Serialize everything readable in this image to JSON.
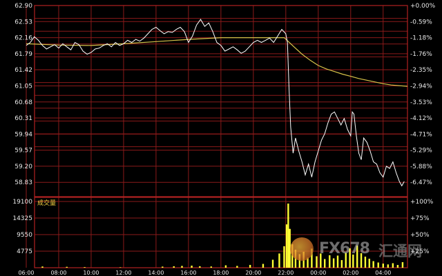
{
  "colors": {
    "background": "#000000",
    "grid": "#8b1a1a",
    "frame": "#b22222",
    "price_line": "#ffffff",
    "avg_line": "#d8c44a",
    "volume_bars": "#ffff33",
    "left_labels": "#e8e8e8",
    "right_labels": "#e8e8e8"
  },
  "volume_panel_label": "成交量",
  "watermark": {
    "brand": "FX678",
    "cn": "汇通网",
    "logo": "fx678-logo-icon"
  },
  "chart_data": [
    {
      "type": "line",
      "panel": "price",
      "y_left_ticks": [
        "62.90",
        "62.53",
        "62.16",
        "61.79",
        "61.42",
        "61.05",
        "60.68",
        "60.31",
        "59.94",
        "59.57",
        "59.20",
        "58.83"
      ],
      "y_right_ticks": [
        "+0.00%",
        "-0.59%",
        "-1.18%",
        "-1.76%",
        "-2.35%",
        "-2.94%",
        "-3.53%",
        "-4.12%",
        "-4.71%",
        "-5.29%",
        "-5.88%",
        "-6.47%"
      ],
      "ylim": [
        58.5,
        62.9
      ],
      "x_ticks": [
        "06:00",
        "08:00",
        "10:00",
        "12:00",
        "14:00",
        "16:00",
        "18:00",
        "20:00",
        "22:00",
        "00:00",
        "02:00",
        "04:00"
      ],
      "x_range_hours": [
        0,
        23.5
      ],
      "series": [
        {
          "kind": "price",
          "points": [
            [
              0,
              61.98
            ],
            [
              0.25,
              62.05
            ],
            [
              0.5,
              62.18
            ],
            [
              0.75,
              62.1
            ],
            [
              1,
              61.98
            ],
            [
              1.25,
              61.9
            ],
            [
              1.5,
              61.95
            ],
            [
              1.75,
              62.0
            ],
            [
              2,
              61.92
            ],
            [
              2.25,
              62.02
            ],
            [
              2.5,
              61.95
            ],
            [
              2.75,
              61.88
            ],
            [
              3,
              62.05
            ],
            [
              3.25,
              62.0
            ],
            [
              3.5,
              61.85
            ],
            [
              3.75,
              61.78
            ],
            [
              4,
              61.82
            ],
            [
              4.25,
              61.9
            ],
            [
              4.5,
              61.92
            ],
            [
              4.75,
              61.98
            ],
            [
              5,
              62.02
            ],
            [
              5.25,
              61.95
            ],
            [
              5.5,
              62.05
            ],
            [
              5.75,
              61.98
            ],
            [
              6,
              62.02
            ],
            [
              6.25,
              62.1
            ],
            [
              6.5,
              62.05
            ],
            [
              6.75,
              62.12
            ],
            [
              7,
              62.08
            ],
            [
              7.25,
              62.15
            ],
            [
              7.5,
              62.25
            ],
            [
              7.75,
              62.35
            ],
            [
              8,
              62.4
            ],
            [
              8.25,
              62.32
            ],
            [
              8.5,
              62.25
            ],
            [
              8.75,
              62.3
            ],
            [
              9,
              62.28
            ],
            [
              9.25,
              62.35
            ],
            [
              9.5,
              62.4
            ],
            [
              9.75,
              62.3
            ],
            [
              10,
              62.05
            ],
            [
              10.25,
              62.2
            ],
            [
              10.5,
              62.45
            ],
            [
              10.75,
              62.58
            ],
            [
              11,
              62.42
            ],
            [
              11.25,
              62.5
            ],
            [
              11.5,
              62.3
            ],
            [
              11.75,
              62.05
            ],
            [
              12,
              61.98
            ],
            [
              12.25,
              61.85
            ],
            [
              12.5,
              61.9
            ],
            [
              12.75,
              61.95
            ],
            [
              13,
              61.88
            ],
            [
              13.25,
              61.8
            ],
            [
              13.5,
              61.85
            ],
            [
              13.75,
              61.95
            ],
            [
              14,
              62.05
            ],
            [
              14.25,
              62.1
            ],
            [
              14.5,
              62.05
            ],
            [
              14.75,
              62.1
            ],
            [
              15,
              62.15
            ],
            [
              15.25,
              62.05
            ],
            [
              15.5,
              62.2
            ],
            [
              15.75,
              62.35
            ],
            [
              16,
              62.25
            ],
            [
              16.1,
              62.05
            ],
            [
              16.2,
              61.0
            ],
            [
              16.3,
              60.1
            ],
            [
              16.45,
              59.5
            ],
            [
              16.6,
              59.85
            ],
            [
              16.8,
              59.55
            ],
            [
              17,
              59.3
            ],
            [
              17.2,
              59.0
            ],
            [
              17.4,
              59.25
            ],
            [
              17.6,
              58.95
            ],
            [
              17.8,
              59.3
            ],
            [
              18,
              59.55
            ],
            [
              18.2,
              59.8
            ],
            [
              18.4,
              59.95
            ],
            [
              18.6,
              60.2
            ],
            [
              18.8,
              60.4
            ],
            [
              19,
              60.45
            ],
            [
              19.2,
              60.3
            ],
            [
              19.4,
              60.15
            ],
            [
              19.6,
              60.3
            ],
            [
              19.8,
              60.05
            ],
            [
              20,
              59.9
            ],
            [
              20.1,
              60.45
            ],
            [
              20.2,
              60.4
            ],
            [
              20.35,
              59.9
            ],
            [
              20.5,
              59.5
            ],
            [
              20.65,
              59.35
            ],
            [
              20.8,
              59.85
            ],
            [
              21,
              59.75
            ],
            [
              21.2,
              59.55
            ],
            [
              21.4,
              59.3
            ],
            [
              21.6,
              59.25
            ],
            [
              21.8,
              59.05
            ],
            [
              22,
              58.95
            ],
            [
              22.2,
              59.2
            ],
            [
              22.4,
              59.15
            ],
            [
              22.6,
              59.3
            ],
            [
              22.8,
              59.05
            ],
            [
              23,
              58.85
            ],
            [
              23.15,
              58.75
            ],
            [
              23.3,
              58.85
            ]
          ]
        },
        {
          "kind": "average",
          "points": [
            [
              0,
              62.02
            ],
            [
              2,
              61.99
            ],
            [
              4,
              61.98
            ],
            [
              6,
              62.02
            ],
            [
              8,
              62.07
            ],
            [
              10,
              62.12
            ],
            [
              12,
              62.16
            ],
            [
              14,
              62.16
            ],
            [
              15.9,
              62.16
            ],
            [
              16.5,
              61.95
            ],
            [
              17,
              61.78
            ],
            [
              17.5,
              61.64
            ],
            [
              18,
              61.52
            ],
            [
              18.5,
              61.44
            ],
            [
              19,
              61.38
            ],
            [
              19.5,
              61.32
            ],
            [
              20,
              61.27
            ],
            [
              20.5,
              61.22
            ],
            [
              21,
              61.18
            ],
            [
              21.5,
              61.14
            ],
            [
              22,
              61.1
            ],
            [
              22.5,
              61.07
            ],
            [
              23.5,
              61.04
            ]
          ]
        }
      ]
    },
    {
      "type": "bar",
      "panel": "volume",
      "title": "成交量",
      "y_left_ticks": [
        "19100",
        "14325",
        "9550",
        "4775"
      ],
      "y_right_ticks": [
        "+100%",
        "+75%",
        "+50%",
        "+25%"
      ],
      "ylim": [
        0,
        19100
      ],
      "x_range_hours": [
        0,
        23.5
      ],
      "points": [
        [
          1.0,
          350
        ],
        [
          2.5,
          260
        ],
        [
          3.6,
          180
        ],
        [
          5.8,
          120
        ],
        [
          8.4,
          320
        ],
        [
          9.1,
          410
        ],
        [
          9.6,
          520
        ],
        [
          10.2,
          600
        ],
        [
          10.7,
          430
        ],
        [
          11.4,
          350
        ],
        [
          12.3,
          690
        ],
        [
          13.0,
          520
        ],
        [
          13.8,
          810
        ],
        [
          14.6,
          1100
        ],
        [
          15.2,
          2300
        ],
        [
          15.6,
          4100
        ],
        [
          15.9,
          6200
        ],
        [
          16.05,
          12500
        ],
        [
          16.15,
          18500
        ],
        [
          16.25,
          11200
        ],
        [
          16.4,
          6800
        ],
        [
          16.6,
          5200
        ],
        [
          16.85,
          3900
        ],
        [
          17.1,
          4600
        ],
        [
          17.35,
          2900
        ],
        [
          17.6,
          5500
        ],
        [
          17.9,
          3300
        ],
        [
          18.15,
          4100
        ],
        [
          18.4,
          2500
        ],
        [
          18.7,
          3600
        ],
        [
          18.95,
          2700
        ],
        [
          19.2,
          3500
        ],
        [
          19.45,
          2200
        ],
        [
          19.7,
          4300
        ],
        [
          19.95,
          5600
        ],
        [
          20.15,
          3800
        ],
        [
          20.4,
          6400
        ],
        [
          20.65,
          4200
        ],
        [
          20.9,
          3200
        ],
        [
          21.15,
          2600
        ],
        [
          21.4,
          1900
        ],
        [
          21.7,
          1500
        ],
        [
          22.0,
          1200
        ],
        [
          22.3,
          950
        ],
        [
          22.6,
          1300
        ],
        [
          22.9,
          800
        ],
        [
          23.2,
          1600
        ]
      ]
    }
  ]
}
